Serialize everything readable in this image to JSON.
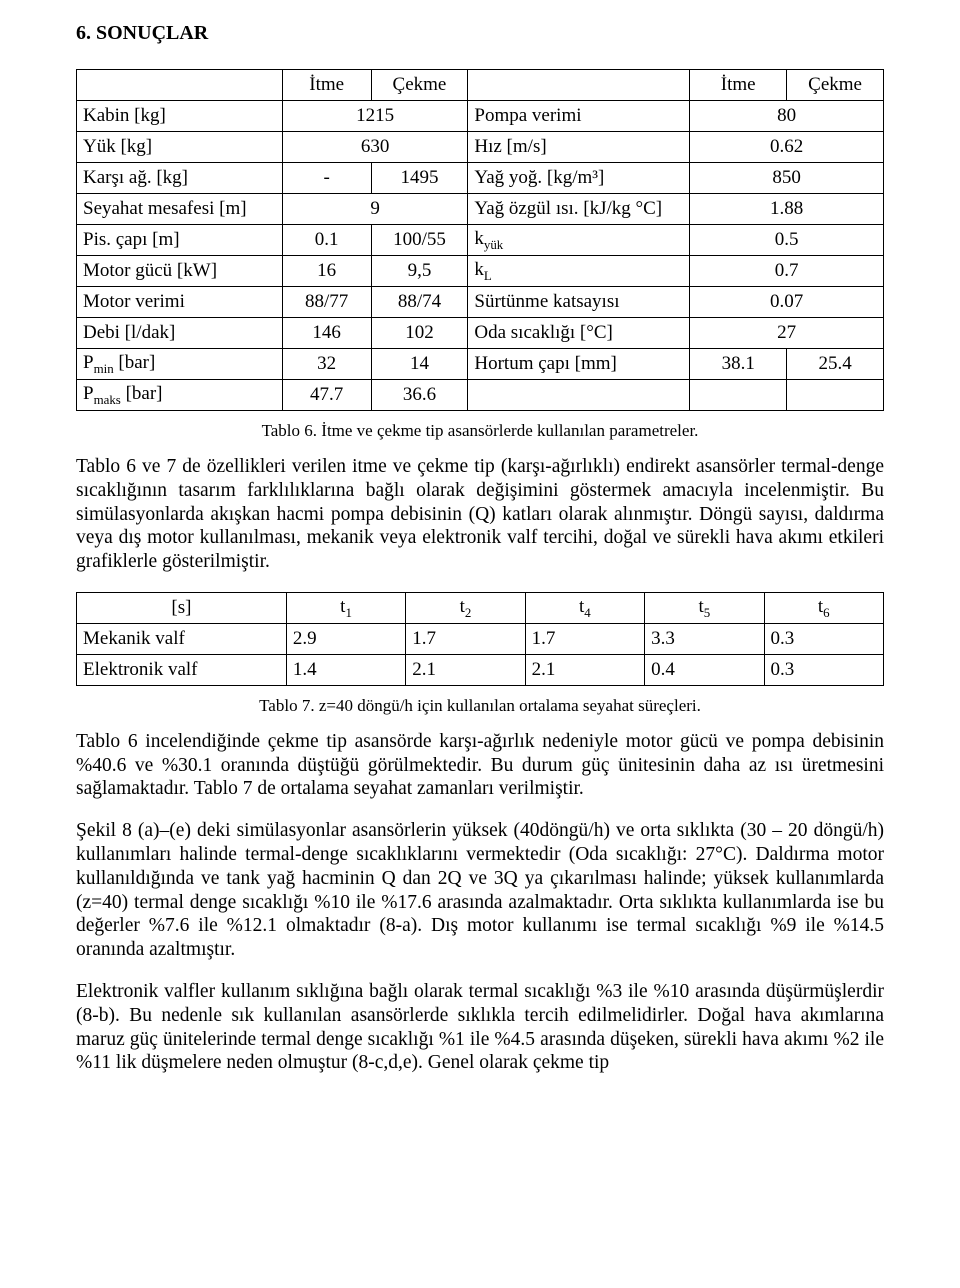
{
  "section_title": "6. SONUÇLAR",
  "table6": {
    "header_itme": "İtme",
    "header_cekme": "Çekme",
    "rows": [
      {
        "l1": "Kabin [kg]",
        "a": "1215",
        "b": null,
        "l2": "Pompa verimi",
        "c": "80",
        "d": null
      },
      {
        "l1": "Yük [kg]",
        "a": "630",
        "b": null,
        "l2": "Hız [m/s]",
        "c": "0.62",
        "d": null
      },
      {
        "l1": "Karşı ağ. [kg]",
        "a": "-",
        "b": "1495",
        "l2": "Yağ yoğ. [kg/m³]",
        "c": "850",
        "d": null
      },
      {
        "l1": "Seyahat mesafesi [m]",
        "a": "9",
        "b": null,
        "l2": "Yağ özgül ısı. [kJ/kg °C]",
        "c": "1.88",
        "d": null
      },
      {
        "l1": "Pis. çapı [m]",
        "a": "0.1",
        "b": "100/55",
        "l2_html": "k<sub>yük</sub>",
        "c": "0.5",
        "d": null
      },
      {
        "l1": "Motor gücü [kW]",
        "a": "16",
        "b": "9,5",
        "l2_html": "k<sub>L</sub>",
        "c": "0.7",
        "d": null
      },
      {
        "l1": "Motor verimi",
        "a": "88/77",
        "b": "88/74",
        "l2": "Sürtünme katsayısı",
        "c": "0.07",
        "d": null
      },
      {
        "l1": "Debi [l/dak]",
        "a": "146",
        "b": "102",
        "l2": "Oda sıcaklığı [°C]",
        "c": "27",
        "d": null
      },
      {
        "l1_html": "P<sub>min</sub> [bar]",
        "a": "32",
        "b": "14",
        "l2": "Hortum çapı [mm]",
        "c": "38.1",
        "d": "25.4"
      },
      {
        "l1_html": "P<sub>maks</sub> [bar]",
        "a": "47.7",
        "b": "36.6",
        "l2": "",
        "c": "",
        "d": ""
      }
    ],
    "caption": "Tablo 6. İtme ve çekme tip asansörlerde kullanılan parametreler."
  },
  "para1": "Tablo 6 ve 7 de özellikleri verilen itme ve çekme tip (karşı-ağırlıklı) endirekt asansörler termal-denge sıcaklığının tasarım farklılıklarına bağlı olarak değişimini göstermek amacıyla incelenmiştir. Bu simülasyonlarda akışkan hacmi pompa debisinin (Q) katları olarak alınmıştır. Döngü sayısı, daldırma veya dış motor kullanılması, mekanik veya elektronik valf tercihi, doğal ve sürekli hava akımı etkileri grafiklerle gösterilmiştir.",
  "table7": {
    "header_label": "[s]",
    "cols_html": [
      "t<sub>1</sub>",
      "t<sub>2</sub>",
      "t<sub>4</sub>",
      "t<sub>5</sub>",
      "t<sub>6</sub>"
    ],
    "rows": [
      {
        "label": "Mekanik valf",
        "v": [
          "2.9",
          "1.7",
          "1.7",
          "3.3",
          "0.3"
        ]
      },
      {
        "label": "Elektronik valf",
        "v": [
          "1.4",
          "2.1",
          "2.1",
          "0.4",
          "0.3"
        ]
      }
    ],
    "caption": "Tablo 7. z=40 döngü/h için kullanılan ortalama seyahat süreçleri."
  },
  "para2": "Tablo 6 incelendiğinde çekme tip asansörde karşı-ağırlık nedeniyle motor gücü ve pompa debisinin %40.6 ve %30.1 oranında düştüğü görülmektedir. Bu durum güç ünitesinin daha az ısı üretmesini sağlamaktadır. Tablo 7 de ortalama seyahat zamanları verilmiştir.",
  "para3": "Şekil 8 (a)–(e) deki simülasyonlar asansörlerin yüksek (40döngü/h) ve orta sıklıkta (30 – 20 döngü/h) kullanımları halinde termal-denge sıcaklıklarını vermektedir (Oda sıcaklığı: 27°C). Daldırma motor kullanıldığında ve tank yağ hacminin Q dan 2Q ve 3Q ya çıkarılması halinde; yüksek kullanımlarda (z=40) termal denge sıcaklığı %10 ile %17.6 arasında azalmaktadır. Orta sıklıkta kullanımlarda ise bu değerler %7.6 ile %12.1 olmaktadır (8-a). Dış motor kullanımı ise termal sıcaklığı %9 ile %14.5 oranında azaltmıştır.",
  "para4": "Elektronik valfler kullanım sıklığına bağlı olarak termal sıcaklığı %3 ile %10 arasında düşürmüşlerdir (8-b). Bu nedenle sık kullanılan asansörlerde sıklıkla tercih edilmelidirler. Doğal hava akımlarına maruz güç ünitelerinde termal denge sıcaklığı %1 ile %4.5 arasında düşeken, sürekli hava akımı %2 ile %11 lik düşmelere neden olmuştur (8-c,d,e). Genel olarak çekme tip"
}
